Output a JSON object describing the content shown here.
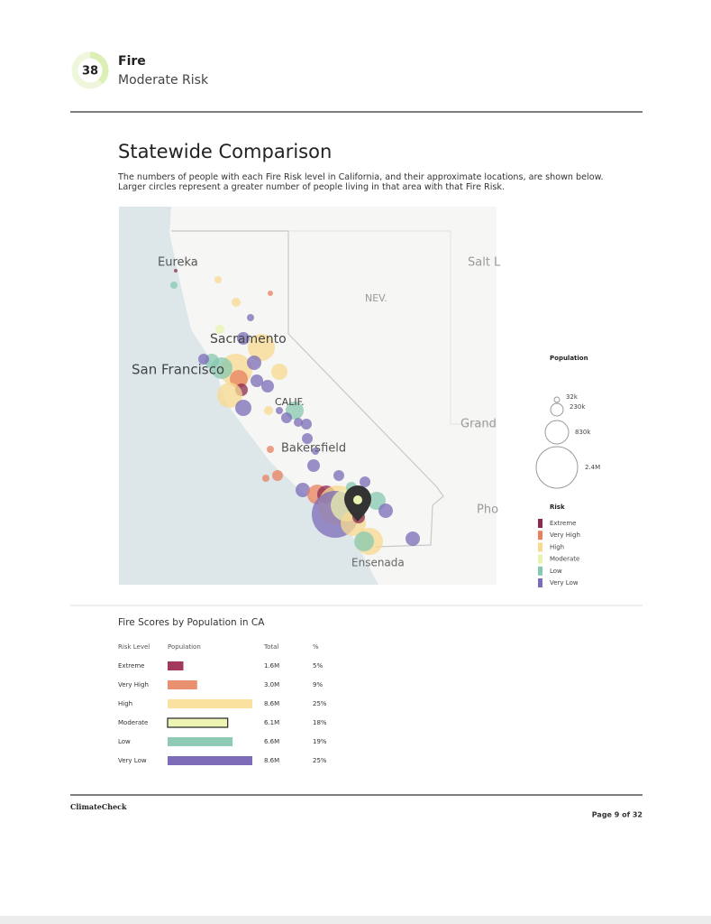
{
  "header": {
    "score": "38",
    "title": "Fire",
    "subtitle": "Moderate Risk"
  },
  "section": {
    "title": "Statewide Comparison",
    "description": "The numbers of people with each Fire Risk level in California, and their approximate locations, are shown below. Larger circles represent a greater number of people living in that area with that Fire Risk."
  },
  "map": {
    "labels": [
      "Eureka",
      "Salt L",
      "NEV.",
      "Sacramento",
      "San Francisco",
      "CALIF.",
      "Grand",
      "Bakersfield",
      "Pho",
      "Ensenada"
    ],
    "legend": {
      "population_title": "Population",
      "population": [
        "32k",
        "230k",
        "830k",
        "2.4M"
      ],
      "risk_title": "Risk",
      "risk": [
        {
          "label": "Extreme",
          "color": "#8e2a4f"
        },
        {
          "label": "Very High",
          "color": "#e8805f"
        },
        {
          "label": "High",
          "color": "#f8d98f"
        },
        {
          "label": "Moderate",
          "color": "#eaf2b0"
        },
        {
          "label": "Low",
          "color": "#86c8b0"
        },
        {
          "label": "Very Low",
          "color": "#7b6bb8"
        }
      ]
    }
  },
  "table": {
    "title": "Fire Scores by Population in CA",
    "columns": [
      "Risk Level",
      "Population",
      "Total",
      "%"
    ],
    "rows": [
      {
        "level": "Extreme",
        "total": "1.6M",
        "percent": "5%",
        "color": "#a23a5c"
      },
      {
        "level": "Very High",
        "total": "3.0M",
        "percent": "9%",
        "color": "#e8906f"
      },
      {
        "level": "High",
        "total": "8.6M",
        "percent": "25%",
        "color": "#fae1a0"
      },
      {
        "level": "Moderate",
        "total": "6.1M",
        "percent": "18%",
        "color": "#eef5b4"
      },
      {
        "level": "Low",
        "total": "6.6M",
        "percent": "19%",
        "color": "#8fcab4"
      },
      {
        "level": "Very Low",
        "total": "8.6M",
        "percent": "25%",
        "color": "#7d6db8"
      }
    ]
  },
  "footer": {
    "brand": "ClimateCheck",
    "page": "Page 9 of 32"
  }
}
